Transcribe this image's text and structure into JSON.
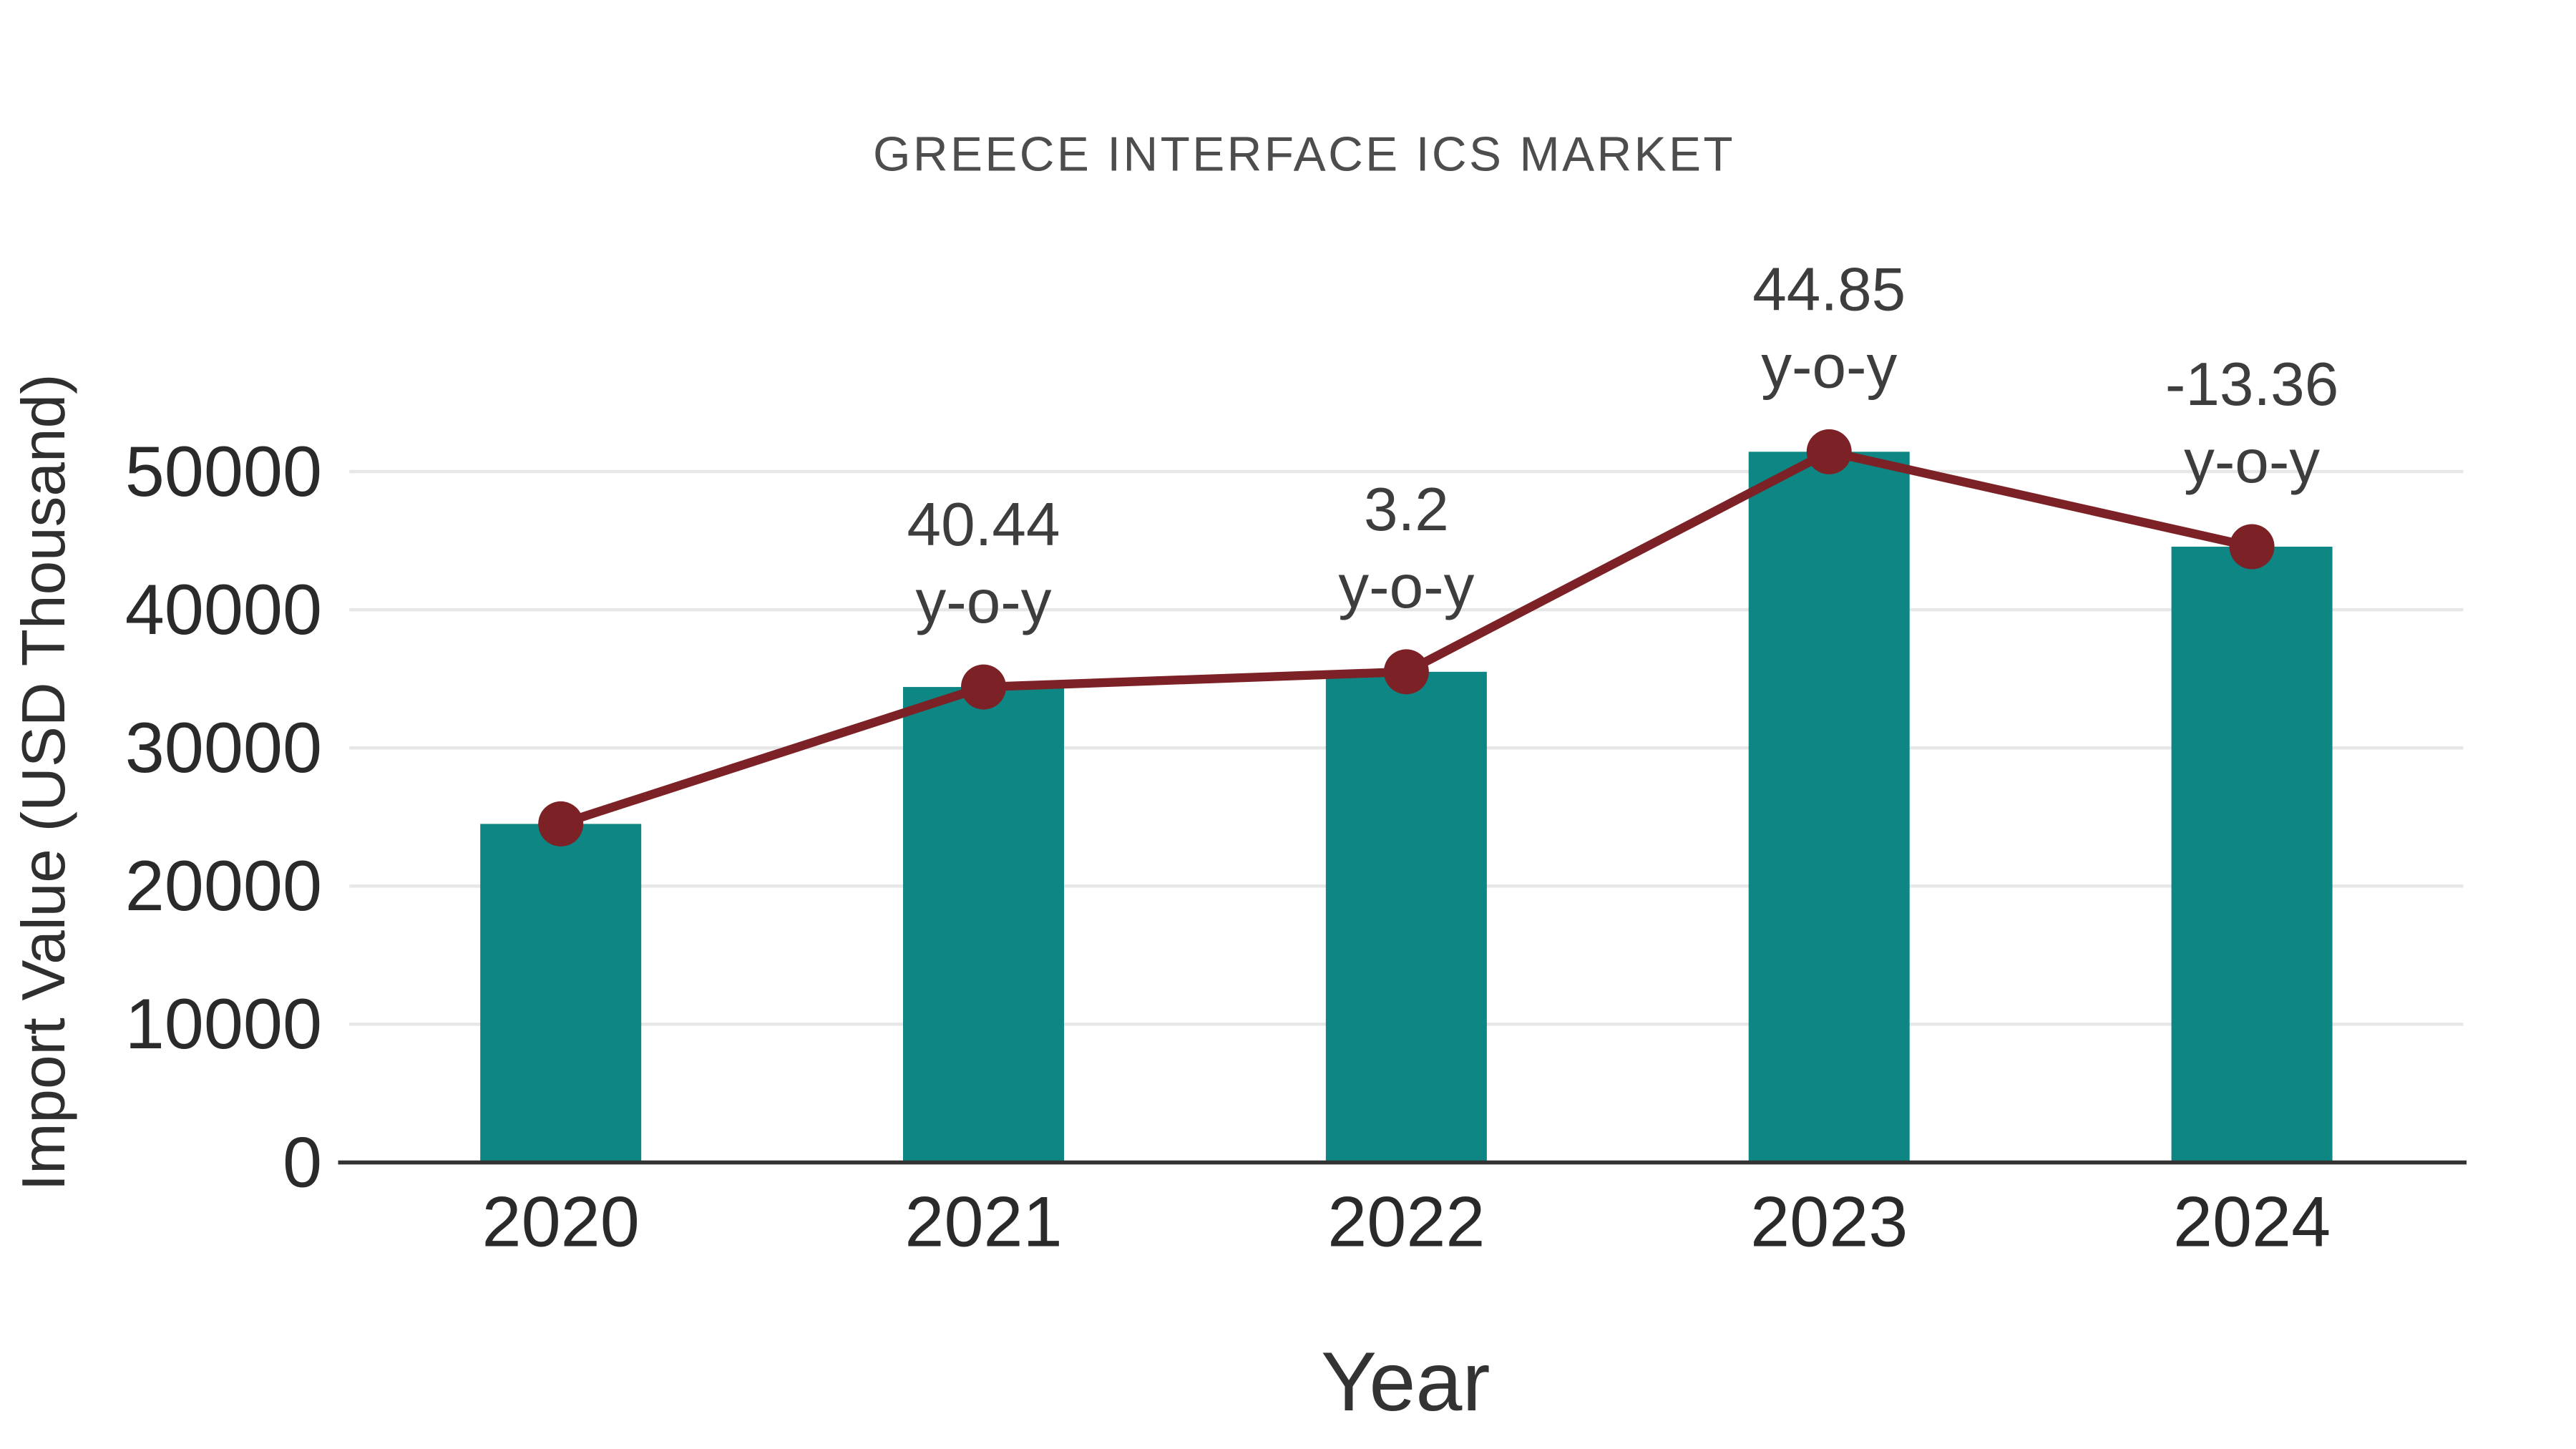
{
  "chart_data": {
    "type": "combo",
    "title": "GREECE INTERFACE ICS MARKET",
    "xlabel": "Year",
    "ylabel": "Import Value (USD Thousand)",
    "categories": [
      "2020",
      "2021",
      "2022",
      "2023",
      "2024"
    ],
    "series": [
      {
        "name": "Import Value (USD Thousand)",
        "type": "bar",
        "color": "#0E8784",
        "values": [
          24500,
          34410,
          35510,
          51435,
          44565
        ]
      },
      {
        "name": "Y-o-Y Growth Marker Line",
        "type": "line",
        "color": "#7C2125",
        "values": [
          24500,
          34410,
          35510,
          51435,
          44565
        ]
      }
    ],
    "annotations": [
      {
        "index": 1,
        "line1": "40.44",
        "line2": "y-o-y"
      },
      {
        "index": 2,
        "line1": "3.2",
        "line2": "y-o-y"
      },
      {
        "index": 3,
        "line1": "44.85",
        "line2": "y-o-y"
      },
      {
        "index": 4,
        "line1": "-13.36",
        "line2": "y-o-y"
      }
    ],
    "ylim": [
      0,
      55000
    ],
    "yticks": [
      0,
      10000,
      20000,
      30000,
      40000,
      50000
    ],
    "grid": true,
    "legend": "none",
    "colors": {
      "bar": "#0E8784",
      "line": "#7C2125",
      "grid": "#e7e7e7",
      "axis": "#333333"
    }
  }
}
